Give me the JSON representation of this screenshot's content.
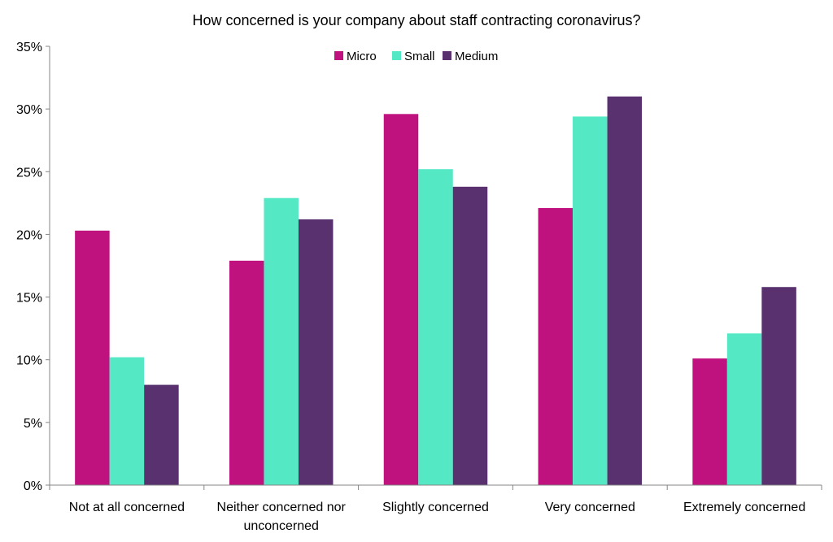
{
  "chart_data": {
    "type": "bar",
    "title": "How concerned is your company about staff contracting coronavirus?",
    "xlabel": "",
    "ylabel": "",
    "ylim": [
      0,
      35
    ],
    "y_ticks": [
      "0%",
      "5%",
      "10%",
      "15%",
      "20%",
      "25%",
      "30%",
      "35%"
    ],
    "y_tick_values": [
      0,
      5,
      10,
      15,
      20,
      25,
      30,
      35
    ],
    "grid": false,
    "legend_position": "top-center",
    "categories": [
      [
        "Not at all concerned"
      ],
      [
        "Neither concerned nor",
        "unconcerned"
      ],
      [
        "Slightly concerned"
      ],
      [
        "Very concerned"
      ],
      [
        "Extremely concerned"
      ]
    ],
    "series": [
      {
        "name": "Micro",
        "color": "#c0127e",
        "values": [
          20.3,
          17.9,
          29.6,
          22.1,
          10.1
        ]
      },
      {
        "name": "Small",
        "color": "#55e8c4",
        "values": [
          10.2,
          22.9,
          25.2,
          29.4,
          12.1
        ]
      },
      {
        "name": "Medium",
        "color": "#58316e",
        "values": [
          8.0,
          21.2,
          23.8,
          31.0,
          15.8
        ]
      }
    ]
  }
}
